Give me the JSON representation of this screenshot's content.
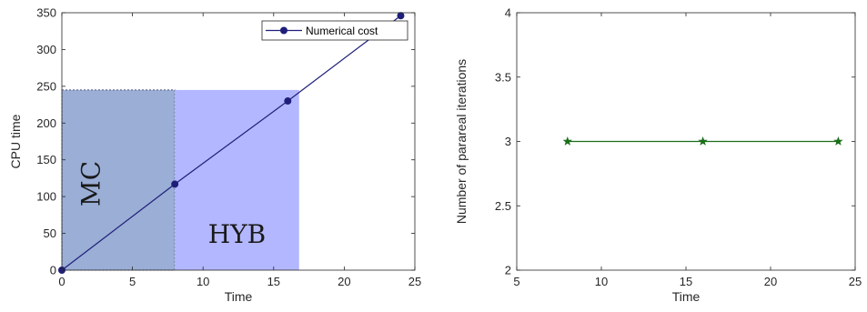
{
  "chart_data": [
    {
      "type": "line",
      "title": "",
      "xlabel": "Time",
      "ylabel": "CPU time",
      "xlim": [
        0,
        25
      ],
      "ylim": [
        0,
        350
      ],
      "xticks": [
        "0",
        "5",
        "10",
        "15",
        "20",
        "25"
      ],
      "yticks": [
        "0",
        "50",
        "100",
        "150",
        "200",
        "250",
        "300",
        "350"
      ],
      "grid": false,
      "legend_position": "top-right",
      "series": [
        {
          "name": "Numerical cost",
          "color": "#1f1f7a",
          "marker": "circle",
          "x": [
            0,
            8,
            16,
            24
          ],
          "y": [
            0,
            117,
            230,
            346
          ]
        }
      ],
      "regions": [
        {
          "label": "MC",
          "x": [
            0,
            8
          ],
          "y": [
            0,
            245
          ],
          "color": "#9aaed6",
          "border": "dotted"
        },
        {
          "label": "HYB",
          "x": [
            8,
            16.8
          ],
          "y": [
            0,
            245
          ],
          "color": "#b3b7ff"
        }
      ]
    },
    {
      "type": "line",
      "title": "",
      "xlabel": "Time",
      "ylabel": "Number of parareal iterations",
      "xlim": [
        5,
        25
      ],
      "ylim": [
        2,
        4
      ],
      "xticks": [
        "5",
        "10",
        "15",
        "20",
        "25"
      ],
      "yticks": [
        "2",
        "2.5",
        "3",
        "3.5",
        "4"
      ],
      "grid": false,
      "series": [
        {
          "color": "#1a6e1a",
          "marker": "star",
          "x": [
            8,
            16,
            24
          ],
          "y": [
            3,
            3,
            3
          ]
        }
      ]
    }
  ]
}
